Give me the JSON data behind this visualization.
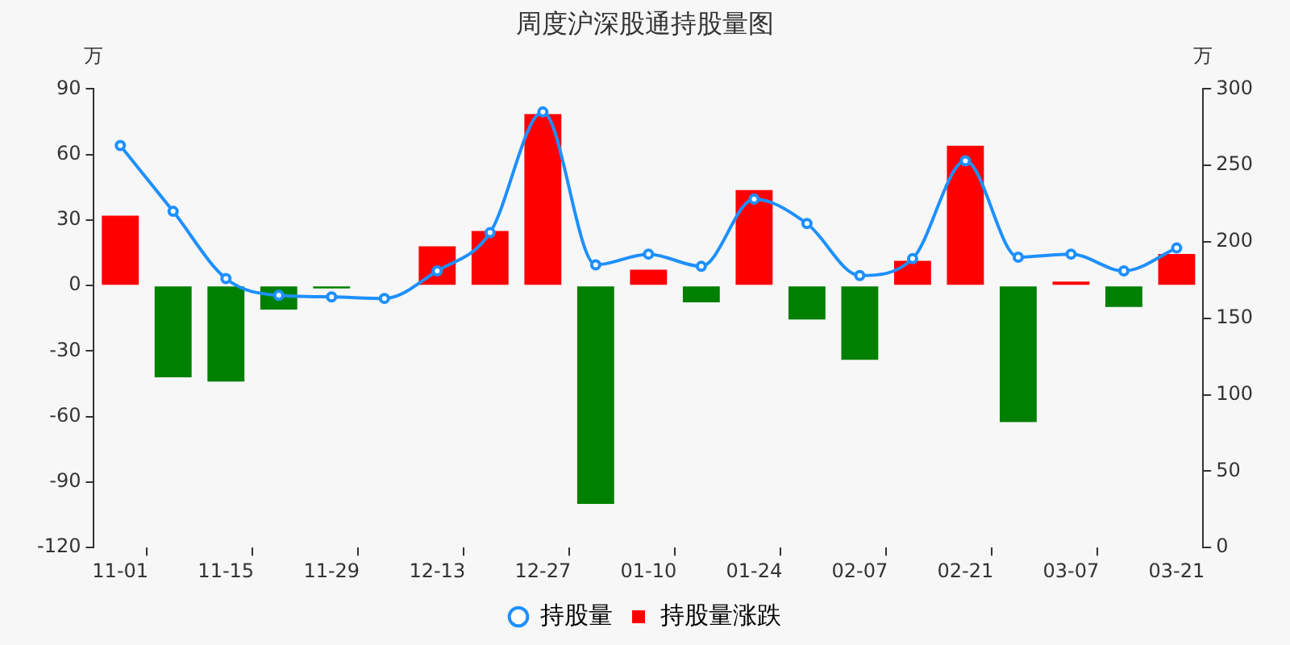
{
  "chart_data": {
    "type": "bar",
    "title": "周度沪深股通持股量图",
    "ylabel": "万",
    "y2label": "万",
    "categories": [
      "11-01",
      null,
      "11-15",
      null,
      "11-29",
      null,
      "12-13",
      null,
      "12-27",
      null,
      "01-10",
      null,
      "01-24",
      null,
      "02-07",
      null,
      "02-21",
      null,
      "03-07",
      null,
      "03-21"
    ],
    "series": [
      {
        "name": "持股量",
        "type": "line",
        "axis": "y2",
        "color": "#1e90ff",
        "marker": "circle",
        "values": [
          263,
          220,
          176,
          165,
          164,
          163,
          181,
          206,
          285,
          185,
          192,
          184,
          228,
          212,
          178,
          189,
          253,
          190,
          192,
          181,
          196
        ]
      },
      {
        "name": "持股量涨跌",
        "color": "#ff0000",
        "colors": [
          "#ff0000",
          "#008000",
          "#008000",
          "#008000",
          "#008000",
          "#008000",
          "#ff0000",
          "#ff0000",
          "#ff0000",
          "#008000",
          "#ff0000",
          "#008000",
          "#ff0000",
          "#008000",
          "#008000",
          "#ff0000",
          "#ff0000",
          "#008000",
          "#ff0000",
          "#008000",
          "#ff0000"
        ],
        "values": [
          32,
          -42,
          -44,
          -11,
          -1.3,
          0,
          18,
          25,
          78.5,
          -100,
          7.3,
          -7.7,
          43.7,
          -15.5,
          -34,
          11.3,
          64,
          -62.5,
          1.8,
          -9.8,
          14.5
        ]
      }
    ],
    "ylim": [
      -120,
      90
    ],
    "yticks": [
      -120,
      -90,
      -60,
      -30,
      0,
      30,
      60,
      90
    ],
    "y2lim": [
      0,
      300
    ],
    "y2ticks": [
      0,
      50,
      100,
      150,
      200,
      250,
      300
    ],
    "grid": false,
    "legend": "bottom"
  }
}
